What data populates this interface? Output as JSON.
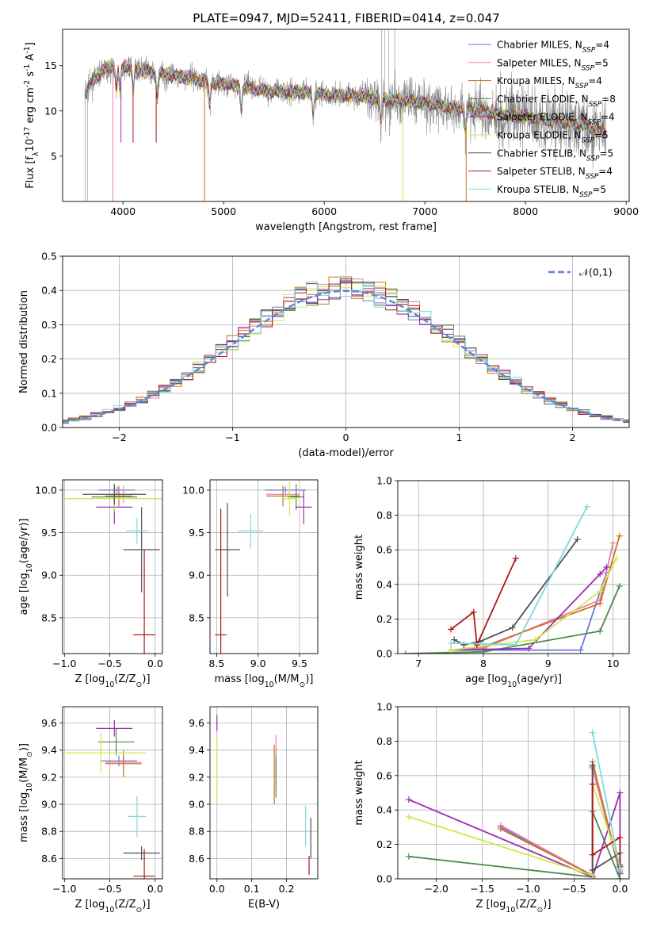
{
  "figure": {
    "title": "PLATE=0947, MJD=52411, FIBERID=0414, z=0.047"
  },
  "colors": {
    "Chabrier MILES": "#6a79d6",
    "Salpeter MILES": "#e87fb4",
    "Kroupa MILES": "#c8741e",
    "Chabrier ELODIE": "#4d8a4d",
    "Salpeter ELODIE": "#9a2fb0",
    "Kroupa ELODIE": "#cfe84a",
    "Chabrier STELIB": "#505050",
    "Salpeter STELIB": "#b01818",
    "Kroupa STELIB": "#7fd8dc",
    "data": "#8a8a8a",
    "normal": "#5c87d6"
  },
  "chart_data": [
    {
      "id": "spectrum",
      "type": "line",
      "xlabel": "wavelength [Angstrom, rest frame]",
      "ylabel": "Flux [f$_\\lambda$10$^{-17}$ erg cm$^{-2}$ s$^{-1}$ A$^{-1}$]",
      "xlim": [
        3400,
        9030
      ],
      "ylim": [
        0,
        19
      ],
      "xticks": [
        4000,
        5000,
        6000,
        7000,
        8000,
        9000
      ],
      "yticks": [
        5,
        10,
        15
      ],
      "legend_position": "top-right",
      "continuum_x": [
        3620,
        3700,
        3800,
        3900,
        4000,
        4100,
        4300,
        4500,
        4800,
        5000,
        5300,
        5600,
        6000,
        6300,
        6600,
        7000,
        7400,
        7800,
        8200,
        8500,
        8800
      ],
      "continuum_y": [
        11.5,
        13.5,
        14.5,
        15.0,
        14.8,
        14.6,
        14.3,
        13.9,
        13.3,
        13.0,
        12.4,
        12.1,
        11.9,
        11.6,
        11.3,
        10.8,
        10.2,
        9.6,
        9.0,
        8.5,
        7.7
      ],
      "series": [
        {
          "name": "Chabrier MILES",
          "n_ssp": "4"
        },
        {
          "name": "Salpeter MILES",
          "n_ssp": "5"
        },
        {
          "name": "Kroupa MILES",
          "n_ssp": "4"
        },
        {
          "name": "Chabrier ELODIE",
          "n_ssp": "8"
        },
        {
          "name": "Salpeter ELODIE",
          "n_ssp": "4"
        },
        {
          "name": "Kroupa ELODIE",
          "n_ssp": "5"
        },
        {
          "name": "Chabrier STELIB",
          "n_ssp": "5"
        },
        {
          "name": "Salpeter STELIB",
          "n_ssp": "4"
        },
        {
          "name": "Kroupa STELIB",
          "n_ssp": "5"
        }
      ]
    },
    {
      "id": "residuals",
      "type": "histogram",
      "xlabel": "(data-model)/error",
      "ylabel": "Normed distribution",
      "xlim": [
        -2.5,
        2.5
      ],
      "ylim": [
        0,
        0.5
      ],
      "xticks": [
        -2,
        -1,
        0,
        1,
        2
      ],
      "yticks": [
        0.0,
        0.1,
        0.2,
        0.3,
        0.4,
        0.5
      ],
      "grid": true,
      "bin_width": 0.1,
      "legend": [
        {
          "name": "$\\mathcal{N}(0,1)$",
          "style": "dashed"
        }
      ],
      "legend_position": "top-right"
    },
    {
      "id": "age_vs_Z",
      "type": "errorbar",
      "xlabel": "Z [log$_{10}$(Z/Z$_\\odot$)]",
      "ylabel": "age  [log$_{10}$(age/yr)]",
      "xlim": [
        -1.02,
        0.08
      ],
      "ylim": [
        8.08,
        10.12
      ],
      "xticks": [
        -1.0,
        -0.5,
        0.0
      ],
      "yticks": [
        8.5,
        9.0,
        9.5,
        10.0
      ],
      "grid": true,
      "points": [
        {
          "model": "Chabrier MILES",
          "x": -0.42,
          "xerr": 0.2,
          "y": 10.0,
          "yerr": 0.04
        },
        {
          "model": "Salpeter MILES",
          "x": -0.35,
          "xerr": 0.15,
          "y": 9.95,
          "yerr": 0.1
        },
        {
          "model": "Kroupa MILES",
          "x": -0.4,
          "xerr": 0.15,
          "y": 9.93,
          "yerr": 0.12
        },
        {
          "model": "Chabrier ELODIE",
          "x": -0.45,
          "xerr": 0.25,
          "y": 9.92,
          "yerr": 0.15
        },
        {
          "model": "Salpeter ELODIE",
          "x": -0.45,
          "xerr": 0.2,
          "y": 9.8,
          "yerr": 0.2
        },
        {
          "model": "Kroupa ELODIE",
          "x": -0.45,
          "xerr": 0.55,
          "y": 9.9,
          "yerr": 0.15
        },
        {
          "model": "Chabrier STELIB",
          "x": -0.45,
          "xerr": 0.35,
          "y": 9.95,
          "yerr": 0.12
        },
        {
          "model": "Chabrier STELIB",
          "x": -0.15,
          "xerr": 0.2,
          "y": 9.3,
          "yerr": 0.5
        },
        {
          "model": "Salpeter STELIB",
          "x": -0.12,
          "xerr": 0.12,
          "y": 8.3,
          "yerr": 1.0
        },
        {
          "model": "Kroupa STELIB",
          "x": -0.2,
          "xerr": 0.12,
          "y": 9.52,
          "yerr": 0.15
        }
      ]
    },
    {
      "id": "age_vs_mass",
      "type": "errorbar",
      "xlabel": "mass [log$_{10}$(M/M$_\\odot$)]",
      "ylabel": "",
      "xlim": [
        8.42,
        9.72
      ],
      "ylim": [
        8.08,
        10.12
      ],
      "xticks": [
        8.5,
        9.0,
        9.5
      ],
      "yticks": [
        8.5,
        9.0,
        9.5,
        10.0
      ],
      "grid": true,
      "points": [
        {
          "model": "Chabrier MILES",
          "x": 9.33,
          "xerr": 0.25,
          "y": 10.0,
          "yerr": 0.04
        },
        {
          "model": "Salpeter MILES",
          "x": 9.3,
          "xerr": 0.2,
          "y": 9.95,
          "yerr": 0.1
        },
        {
          "model": "Kroupa MILES",
          "x": 9.3,
          "xerr": 0.2,
          "y": 9.93,
          "yerr": 0.12
        },
        {
          "model": "Chabrier ELODIE",
          "x": 9.46,
          "xerr": 0.1,
          "y": 9.92,
          "yerr": 0.15
        },
        {
          "model": "Salpeter ELODIE",
          "x": 9.55,
          "xerr": 0.1,
          "y": 9.8,
          "yerr": 0.2
        },
        {
          "model": "Kroupa ELODIE",
          "x": 9.38,
          "xerr": 0.1,
          "y": 9.9,
          "yerr": 0.2
        },
        {
          "model": "Chabrier STELIB",
          "x": 8.63,
          "xerr": 0.15,
          "y": 9.3,
          "yerr": 0.55
        },
        {
          "model": "Salpeter STELIB",
          "x": 8.55,
          "xerr": 0.07,
          "y": 8.3,
          "yerr": 1.48
        },
        {
          "model": "Kroupa STELIB",
          "x": 8.91,
          "xerr": 0.15,
          "y": 9.52,
          "yerr": 0.2
        }
      ]
    },
    {
      "id": "weight_vs_age",
      "type": "line",
      "xlabel": "age  [log$_{10}$(age/yr)]",
      "ylabel": "mass weight",
      "xlim": [
        6.68,
        10.25
      ],
      "ylim": [
        0.0,
        1.0
      ],
      "xticks": [
        7,
        8,
        9,
        10
      ],
      "yticks": [
        0.0,
        0.2,
        0.4,
        0.6,
        0.8,
        1.0
      ],
      "grid": true,
      "series": [
        {
          "name": "Chabrier MILES",
          "x": [
            7.5,
            8.0,
            9.5,
            9.9
          ],
          "y": [
            0.02,
            0.02,
            0.02,
            0.47
          ]
        },
        {
          "name": "Salpeter MILES",
          "x": [
            7.5,
            8.0,
            9.8,
            10.0
          ],
          "y": [
            0.02,
            0.03,
            0.31,
            0.64
          ]
        },
        {
          "name": "Kroupa MILES",
          "x": [
            7.5,
            8.0,
            9.8,
            10.1
          ],
          "y": [
            0.02,
            0.04,
            0.29,
            0.68
          ]
        },
        {
          "name": "Chabrier ELODIE",
          "x": [
            6.8,
            8.0,
            9.8,
            10.1
          ],
          "y": [
            0.0,
            0.01,
            0.13,
            0.39
          ]
        },
        {
          "name": "Salpeter ELODIE",
          "x": [
            7.5,
            8.7,
            9.8,
            9.9
          ],
          "y": [
            0.02,
            0.03,
            0.46,
            0.5
          ]
        },
        {
          "name": "Kroupa ELODIE",
          "x": [
            7.5,
            8.8,
            9.8,
            10.05
          ],
          "y": [
            0.02,
            0.08,
            0.36,
            0.55
          ]
        },
        {
          "name": "Chabrier STELIB",
          "x": [
            7.55,
            7.7,
            7.95,
            8.45,
            9.45
          ],
          "y": [
            0.08,
            0.05,
            0.07,
            0.15,
            0.66
          ]
        },
        {
          "name": "Salpeter STELIB",
          "x": [
            7.5,
            7.85,
            7.9,
            8.5
          ],
          "y": [
            0.14,
            0.24,
            0.05,
            0.55
          ]
        },
        {
          "name": "Kroupa STELIB",
          "x": [
            7.5,
            8.5,
            9.6
          ],
          "y": [
            0.06,
            0.05,
            0.85
          ]
        }
      ]
    },
    {
      "id": "mass_vs_Z",
      "type": "errorbar",
      "xlabel": "Z [log$_{10}$(Z/Z$_\\odot$)]",
      "ylabel": "mass [log$_{10}$(M/M$_\\odot$)]",
      "xlim": [
        -1.02,
        0.08
      ],
      "ylim": [
        8.45,
        9.72
      ],
      "xticks": [
        -1.0,
        -0.5,
        0.0
      ],
      "yticks": [
        8.6,
        8.8,
        9.0,
        9.2,
        9.4,
        9.6
      ],
      "grid": true,
      "points": [
        {
          "model": "Chabrier MILES",
          "x": -0.4,
          "xerr": 0.2,
          "y": 9.32,
          "yerr": 0.04
        },
        {
          "model": "Salpeter MILES",
          "x": -0.35,
          "xerr": 0.2,
          "y": 9.31,
          "yerr": 0.05
        },
        {
          "model": "Kroupa MILES",
          "x": -0.35,
          "xerr": 0.2,
          "y": 9.3,
          "yerr": 0.1
        },
        {
          "model": "Chabrier ELODIE",
          "x": -0.43,
          "xerr": 0.2,
          "y": 9.46,
          "yerr": 0.1
        },
        {
          "model": "Salpeter ELODIE",
          "x": -0.45,
          "xerr": 0.2,
          "y": 9.56,
          "yerr": 0.06
        },
        {
          "model": "Kroupa ELODIE",
          "x": -0.6,
          "xerr": 0.5,
          "y": 9.38,
          "yerr": 0.15
        },
        {
          "model": "Chabrier STELIB",
          "x": -0.15,
          "xerr": 0.2,
          "y": 8.64,
          "yerr": 0.05
        },
        {
          "model": "Salpeter STELIB",
          "x": -0.12,
          "xerr": 0.12,
          "y": 8.47,
          "yerr": 0.2
        },
        {
          "model": "Kroupa STELIB",
          "x": -0.2,
          "xerr": 0.1,
          "y": 8.91,
          "yerr": 0.15
        }
      ]
    },
    {
      "id": "mass_vs_ebv",
      "type": "errorbar",
      "xlabel": "E(B-V)",
      "ylabel": "",
      "xlim": [
        -0.02,
        0.29
      ],
      "ylim": [
        8.45,
        9.72
      ],
      "xticks": [
        0.0,
        0.1,
        0.2
      ],
      "yticks": [
        8.6,
        8.8,
        9.0,
        9.2,
        9.4,
        9.6
      ],
      "grid": true,
      "points": [
        {
          "model": "Chabrier MILES",
          "x": 0.17,
          "y": 9.32,
          "yerr": 0.07
        },
        {
          "model": "Salpeter MILES",
          "x": 0.17,
          "y": 9.31,
          "yerr": 0.2
        },
        {
          "model": "Kroupa MILES",
          "x": 0.165,
          "y": 9.22,
          "yerr": 0.22
        },
        {
          "model": "Chabrier ELODIE",
          "x": 0.17,
          "y": 9.2,
          "yerr": 0.15
        },
        {
          "model": "Salpeter ELODIE",
          "x": 0.0,
          "y": 9.6,
          "yerr": 0.06
        },
        {
          "model": "Kroupa ELODIE",
          "x": 0.0,
          "y": 9.25,
          "yerr": 0.25
        },
        {
          "model": "Chabrier STELIB",
          "x": 0.27,
          "y": 8.75,
          "yerr": 0.15
        },
        {
          "model": "Salpeter STELIB",
          "x": 0.265,
          "y": 8.55,
          "yerr": 0.07
        },
        {
          "model": "Kroupa STELIB",
          "x": 0.255,
          "y": 8.84,
          "yerr": 0.15
        }
      ]
    },
    {
      "id": "weight_vs_Z",
      "type": "line",
      "xlabel": "Z [log$_{10}$(Z/Z$_\\odot$)]",
      "ylabel": "mass weight",
      "xlim": [
        -2.42,
        0.1
      ],
      "ylim": [
        0.0,
        1.0
      ],
      "xticks": [
        -2.0,
        -1.5,
        -1.0,
        -0.5,
        0.0
      ],
      "yticks": [
        0.0,
        0.2,
        0.4,
        0.6,
        0.8,
        1.0
      ],
      "grid": true,
      "series": [
        {
          "name": "Chabrier MILES",
          "x": [
            -1.3,
            -0.3,
            -0.3,
            0.0
          ],
          "y": [
            0.3,
            0.02,
            0.65,
            0.03
          ]
        },
        {
          "name": "Salpeter MILES",
          "x": [
            -1.3,
            -0.3,
            -0.3,
            0.0
          ],
          "y": [
            0.31,
            0.02,
            0.64,
            0.05
          ]
        },
        {
          "name": "Kroupa MILES",
          "x": [
            -1.3,
            -0.3,
            -0.3,
            0.0
          ],
          "y": [
            0.29,
            0.02,
            0.68,
            0.04
          ]
        },
        {
          "name": "Chabrier ELODIE",
          "x": [
            -2.3,
            -0.3,
            -0.3,
            0.0
          ],
          "y": [
            0.13,
            0.01,
            0.39,
            0.0
          ]
        },
        {
          "name": "Salpeter ELODIE",
          "x": [
            -2.3,
            -0.3,
            0.0,
            0.0
          ],
          "y": [
            0.46,
            0.01,
            0.5,
            0.03
          ]
        },
        {
          "name": "Kroupa ELODIE",
          "x": [
            -2.3,
            -0.3,
            -0.3,
            0.0
          ],
          "y": [
            0.36,
            0.02,
            0.55,
            0.08
          ]
        },
        {
          "name": "Chabrier STELIB",
          "x": [
            -0.3,
            -0.3,
            0.0,
            0.0
          ],
          "y": [
            0.66,
            0.05,
            0.15,
            0.08
          ]
        },
        {
          "name": "Salpeter STELIB",
          "x": [
            -0.3,
            -0.3,
            0.0,
            0.0
          ],
          "y": [
            0.55,
            0.14,
            0.24,
            0.07
          ]
        },
        {
          "name": "Kroupa STELIB",
          "x": [
            -0.3,
            0.0,
            0.0
          ],
          "y": [
            0.85,
            0.06,
            0.05
          ]
        }
      ]
    }
  ]
}
